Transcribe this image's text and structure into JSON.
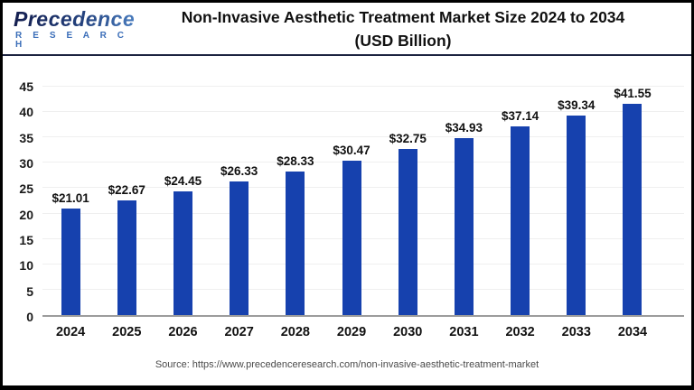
{
  "logo": {
    "brand": "Precedence",
    "sub": "R E S E A R C H"
  },
  "header": {
    "title_line1": "Non-Invasive Aesthetic Treatment Market Size 2024 to 2034",
    "title_line2": "(USD Billion)"
  },
  "footer": {
    "source": "Source: https://www.precedenceresearch.com/non-invasive-aesthetic-treatment-market"
  },
  "colors": {
    "bar": "#1641ae",
    "axis_line": "#9c9c9c",
    "gridline": "#efefef",
    "divider": "#1c2340",
    "logo_dark": "#141e4f",
    "logo_light": "#4d82c4"
  },
  "chart_data": {
    "type": "bar",
    "title": "Non-Invasive Aesthetic Treatment Market Size 2024 to 2034 (USD Billion)",
    "unit": "USD Billion",
    "categories": [
      "2024",
      "2025",
      "2026",
      "2027",
      "2028",
      "2029",
      "2030",
      "2031",
      "2032",
      "2033",
      "2034"
    ],
    "values": [
      21.01,
      22.67,
      24.45,
      26.33,
      28.33,
      30.47,
      32.75,
      34.93,
      37.14,
      39.34,
      41.55
    ],
    "labels": [
      "$21.01",
      "$22.67",
      "$24.45",
      "$26.33",
      "$28.33",
      "$30.47",
      "$32.75",
      "$34.93",
      "$37.14",
      "$39.34",
      "$41.55"
    ],
    "xlabel": "",
    "ylabel": "",
    "ylim": [
      0,
      45
    ],
    "y_ticks": [
      0,
      5,
      10,
      15,
      20,
      25,
      30,
      35,
      40,
      45
    ],
    "grid": "horizontal",
    "legend": "none",
    "bar_color": "#1641ae"
  }
}
